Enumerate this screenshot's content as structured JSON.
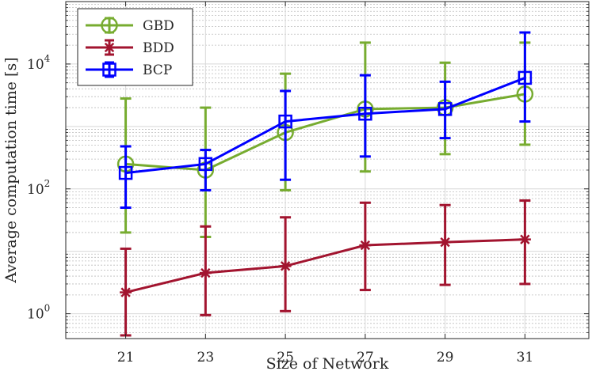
{
  "chart_data": {
    "type": "line",
    "title": "",
    "xlabel": "Size of Network",
    "ylabel": "Average computation time [s]",
    "y_scale": "log",
    "x": [
      21,
      23,
      25,
      27,
      29,
      31
    ],
    "xlim": [
      19.5,
      32.6
    ],
    "ylim": [
      0.4,
      100000
    ],
    "x_ticks": [
      21,
      23,
      25,
      27,
      29,
      31
    ],
    "y_ticks": [
      {
        "value": 1,
        "base": "10",
        "exp": "0"
      },
      {
        "value": 100,
        "base": "10",
        "exp": "2"
      },
      {
        "value": 10000,
        "base": "10",
        "exp": "4"
      }
    ],
    "grid": true,
    "minor_grid": true,
    "legend_position": "top-left",
    "series": [
      {
        "name": "GBD",
        "color": "#77AC30",
        "marker": "circle",
        "values": [
          250,
          200,
          800,
          1900,
          2000,
          3300
        ],
        "err_low": [
          20,
          17,
          95,
          190,
          360,
          510
        ],
        "err_high": [
          2800,
          2000,
          7000,
          22000,
          10500,
          22000
        ]
      },
      {
        "name": "BDD",
        "color": "#A2142F",
        "marker": "asterisk",
        "values": [
          2.2,
          4.5,
          5.8,
          12.5,
          14,
          15.5
        ],
        "err_low": [
          0.45,
          0.95,
          1.1,
          2.4,
          2.9,
          3.0
        ],
        "err_high": [
          11,
          25,
          35,
          60,
          55,
          65
        ]
      },
      {
        "name": "BCP",
        "color": "#0000FF",
        "marker": "square",
        "values": [
          180,
          250,
          1200,
          1600,
          1900,
          6000
        ],
        "err_low": [
          50,
          95,
          140,
          330,
          650,
          1200
        ],
        "err_high": [
          480,
          420,
          3700,
          6600,
          5200,
          32000
        ]
      }
    ]
  }
}
